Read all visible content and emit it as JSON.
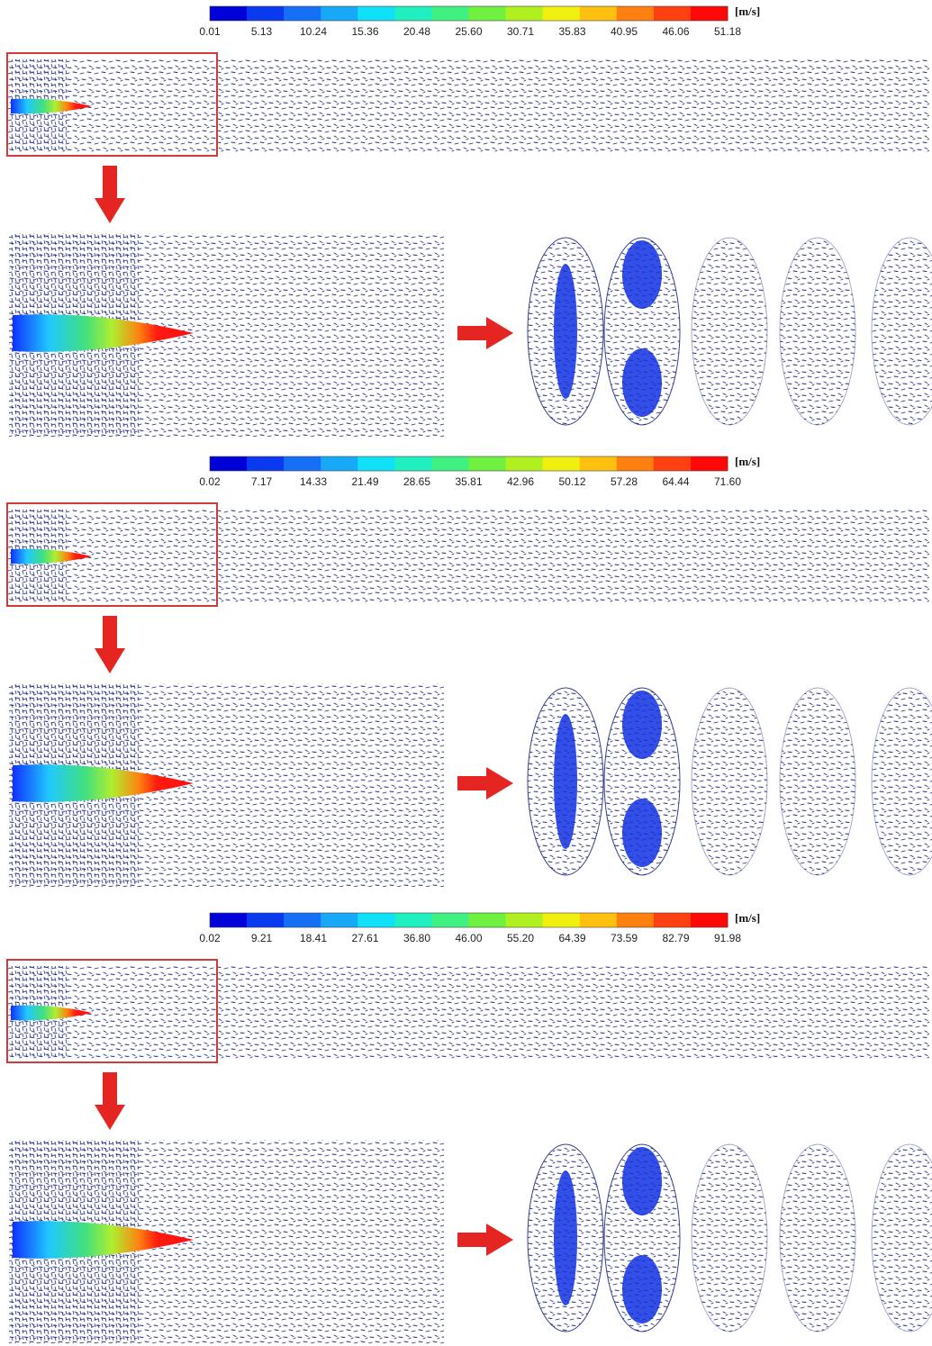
{
  "panels": [
    {
      "colorbar": {
        "unit": "[m/s]",
        "ticks": [
          "0.01",
          "5.13",
          "10.24",
          "15.36",
          "20.48",
          "25.60",
          "30.71",
          "35.83",
          "40.95",
          "46.06",
          "51.18"
        ]
      }
    },
    {
      "colorbar": {
        "unit": "[m/s]",
        "ticks": [
          "0.02",
          "7.17",
          "14.33",
          "21.49",
          "28.65",
          "35.81",
          "42.96",
          "50.12",
          "57.28",
          "64.44",
          "71.60"
        ]
      }
    },
    {
      "colorbar": {
        "unit": "[m/s]",
        "ticks": [
          "0.02",
          "9.21",
          "18.41",
          "27.61",
          "36.80",
          "46.00",
          "55.20",
          "64.39",
          "73.59",
          "82.79",
          "91.98"
        ]
      }
    }
  ]
}
